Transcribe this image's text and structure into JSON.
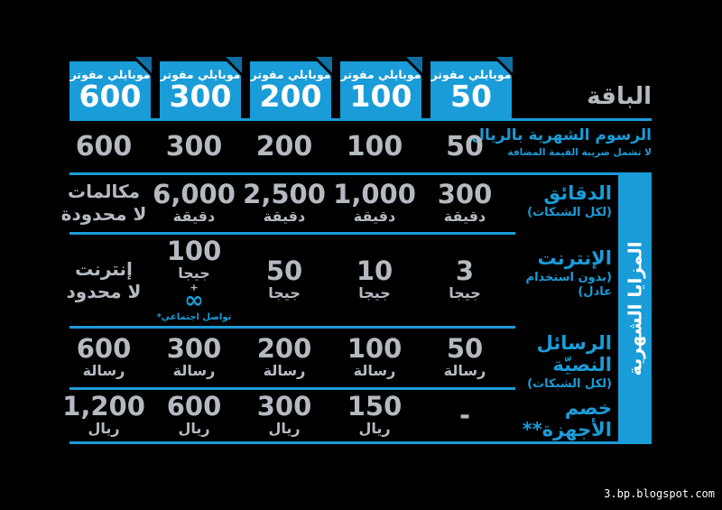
{
  "colors": {
    "accent_blue": "#1A9CD8",
    "fold_dark_blue": "#0D6FA3",
    "ink_gray": "#B5BAC1",
    "background": "#000000",
    "white": "#FFFFFF"
  },
  "header": {
    "title": "الباقة",
    "plans": [
      {
        "brand": "موبايلي مفوتر",
        "value": "600"
      },
      {
        "brand": "موبايلي مفوتر",
        "value": "300"
      },
      {
        "brand": "موبايلي مفوتر",
        "value": "200"
      },
      {
        "brand": "موبايلي مفوتر",
        "value": "100"
      },
      {
        "brand": "موبايلي مفوتر",
        "value": "50"
      }
    ]
  },
  "sidebar": {
    "label": "المزايا الشهرية"
  },
  "rows": {
    "fees": {
      "label": "الرسوم الشهرية بالريال",
      "sublabel": "لا تشمل ضريبة القيمة المضافة",
      "values": [
        "600",
        "300",
        "200",
        "100",
        "50"
      ]
    },
    "minutes": {
      "label": "الدقائق",
      "sublabel": "(لكل الشبكات)",
      "values": [
        {
          "main": "مكالمات",
          "sub": "لا محدودة"
        },
        {
          "main": "6,000",
          "sub": "دقيقة"
        },
        {
          "main": "2,500",
          "sub": "دقيقة"
        },
        {
          "main": "1,000",
          "sub": "دقيقة"
        },
        {
          "main": "300",
          "sub": "دقيقة"
        }
      ]
    },
    "internet": {
      "label": "الإنترنت",
      "sublabel": "(بدون استخدام عادل)",
      "values": [
        {
          "main": "إنترنت",
          "sub": "لا محدود"
        },
        {
          "main": "100",
          "sub": "جيجا",
          "plus": "+",
          "infinity": "∞",
          "note": "تواصل اجتماعي*"
        },
        {
          "main": "50",
          "sub": "جيجا"
        },
        {
          "main": "10",
          "sub": "جيجا"
        },
        {
          "main": "3",
          "sub": "جيجا"
        }
      ]
    },
    "sms": {
      "label": "الرسائل النصيّة",
      "sublabel": "(لكل الشبكات)",
      "values": [
        {
          "main": "600",
          "sub": "رسالة"
        },
        {
          "main": "300",
          "sub": "رسالة"
        },
        {
          "main": "200",
          "sub": "رسالة"
        },
        {
          "main": "100",
          "sub": "رسالة"
        },
        {
          "main": "50",
          "sub": "رسالة"
        }
      ]
    },
    "device": {
      "label": "خصم الأجهزة**",
      "values": [
        {
          "main": "1,200",
          "sub": "ريال"
        },
        {
          "main": "600",
          "sub": "ريال"
        },
        {
          "main": "300",
          "sub": "ريال"
        },
        {
          "main": "150",
          "sub": "ريال"
        },
        {
          "main": "-",
          "sub": ""
        }
      ]
    }
  },
  "watermark": "3.bp.blogspot.com",
  "chart_data": {
    "type": "table",
    "title": "الباقة",
    "columns": [
      "موبايلي مفوتر 600",
      "موبايلي مفوتر 300",
      "موبايلي مفوتر 200",
      "موبايلي مفوتر 100",
      "موبايلي مفوتر 50"
    ],
    "row_labels": [
      "الرسوم الشهرية بالريال (لا تشمل ضريبة القيمة المضافة)",
      "الدقائق (لكل الشبكات)",
      "الإنترنت (بدون استخدام عادل)",
      "الرسائل النصيّة (لكل الشبكات)",
      "خصم الأجهزة**"
    ],
    "cells": [
      [
        "600",
        "300",
        "200",
        "100",
        "50"
      ],
      [
        "مكالمات لا محدودة",
        "6,000 دقيقة",
        "2,500 دقيقة",
        "1,000 دقيقة",
        "300 دقيقة"
      ],
      [
        "إنترنت لا محدود",
        "100 جيجا + ∞ تواصل اجتماعي*",
        "50 جيجا",
        "10 جيجا",
        "3 جيجا"
      ],
      [
        "600 رسالة",
        "300 رسالة",
        "200 رسالة",
        "100 رسالة",
        "50 رسالة"
      ],
      [
        "1,200 ريال",
        "600 ريال",
        "300 ريال",
        "150 ريال",
        "-"
      ]
    ],
    "legend_position": "none",
    "grid": "blue horizontal separators",
    "sidebar_group_label": "المزايا الشهرية"
  }
}
